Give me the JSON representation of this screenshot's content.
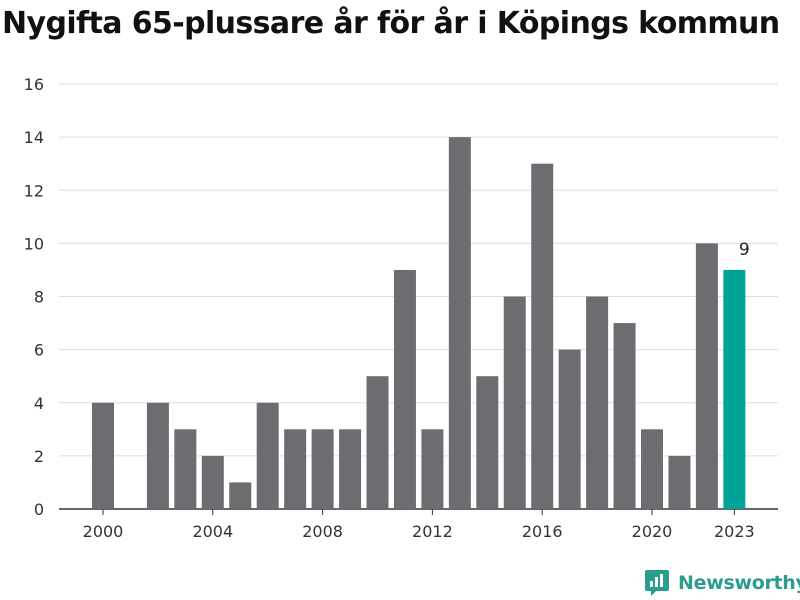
{
  "chart_data": {
    "type": "bar",
    "title": "Nygifta 65-plussare år för år i Köpings kommun",
    "xlabel": "",
    "ylabel": "",
    "categories": [
      "2000",
      "2001",
      "2002",
      "2003",
      "2004",
      "2005",
      "2006",
      "2007",
      "2008",
      "2009",
      "2010",
      "2011",
      "2012",
      "2013",
      "2014",
      "2015",
      "2016",
      "2017",
      "2018",
      "2019",
      "2020",
      "2021",
      "2022",
      "2023"
    ],
    "values": [
      4,
      0,
      4,
      3,
      2,
      1,
      4,
      3,
      3,
      3,
      5,
      9,
      3,
      14,
      5,
      8,
      13,
      6,
      8,
      7,
      3,
      2,
      10,
      9
    ],
    "ylim": [
      0,
      16
    ],
    "yticks": [
      0,
      2,
      4,
      6,
      8,
      10,
      12,
      14,
      16
    ],
    "xticks": [
      "2000",
      "2004",
      "2008",
      "2012",
      "2016",
      "2020",
      "2023"
    ],
    "grid": true,
    "highlight": {
      "category": "2023",
      "label": "9"
    },
    "colors": {
      "bar": "#6d6c71",
      "highlight": "#00a398",
      "grid": "#dddddd",
      "axis": "#333333"
    }
  },
  "brand": {
    "name": "Newsworthy",
    "icon": "newsworthy-logo-icon",
    "color": "#2a9d8f"
  }
}
